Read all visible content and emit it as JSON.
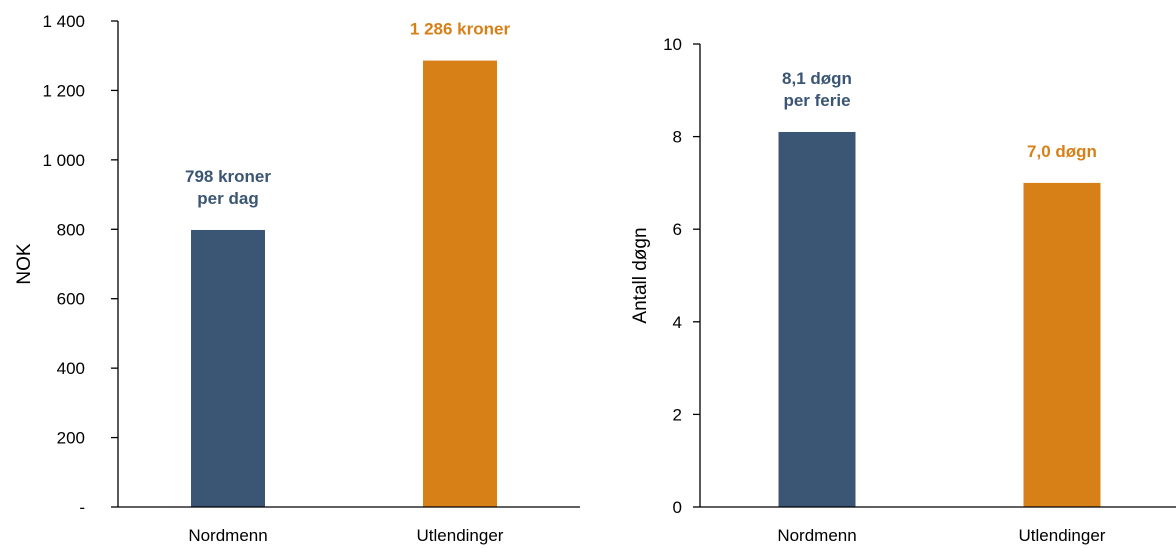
{
  "chart_data": [
    {
      "type": "bar",
      "categories": [
        "Nordmenn",
        "Utlendinger"
      ],
      "values": [
        798,
        1286
      ],
      "colors": [
        "#3b5675",
        "#d88018"
      ],
      "ylabel": "NOK",
      "ylim": [
        0,
        1400
      ],
      "yticks": [
        {
          "value": 0,
          "label": "-"
        },
        {
          "value": 200,
          "label": "200"
        },
        {
          "value": 400,
          "label": "400"
        },
        {
          "value": 600,
          "label": "600"
        },
        {
          "value": 800,
          "label": "800"
        },
        {
          "value": 1000,
          "label": "1 000"
        },
        {
          "value": 1200,
          "label": "1 200"
        },
        {
          "value": 1400,
          "label": "1 400"
        }
      ],
      "data_labels": [
        [
          "798 kroner",
          "per dag"
        ],
        [
          "1 286 kroner"
        ]
      ],
      "grid": false,
      "legend": "none"
    },
    {
      "type": "bar",
      "categories": [
        "Nordmenn",
        "Utlendinger"
      ],
      "values": [
        8.1,
        7.0
      ],
      "colors": [
        "#3b5675",
        "#d88018"
      ],
      "ylabel": "Antall døgn",
      "ylim": [
        0,
        10
      ],
      "yticks": [
        {
          "value": 0,
          "label": "0"
        },
        {
          "value": 2,
          "label": "2"
        },
        {
          "value": 4,
          "label": "4"
        },
        {
          "value": 6,
          "label": "6"
        },
        {
          "value": 8,
          "label": "8"
        },
        {
          "value": 10,
          "label": "10"
        }
      ],
      "data_labels": [
        [
          "8,1 døgn",
          "per ferie"
        ],
        [
          "7,0 døgn"
        ]
      ],
      "grid": false,
      "legend": "none"
    }
  ]
}
